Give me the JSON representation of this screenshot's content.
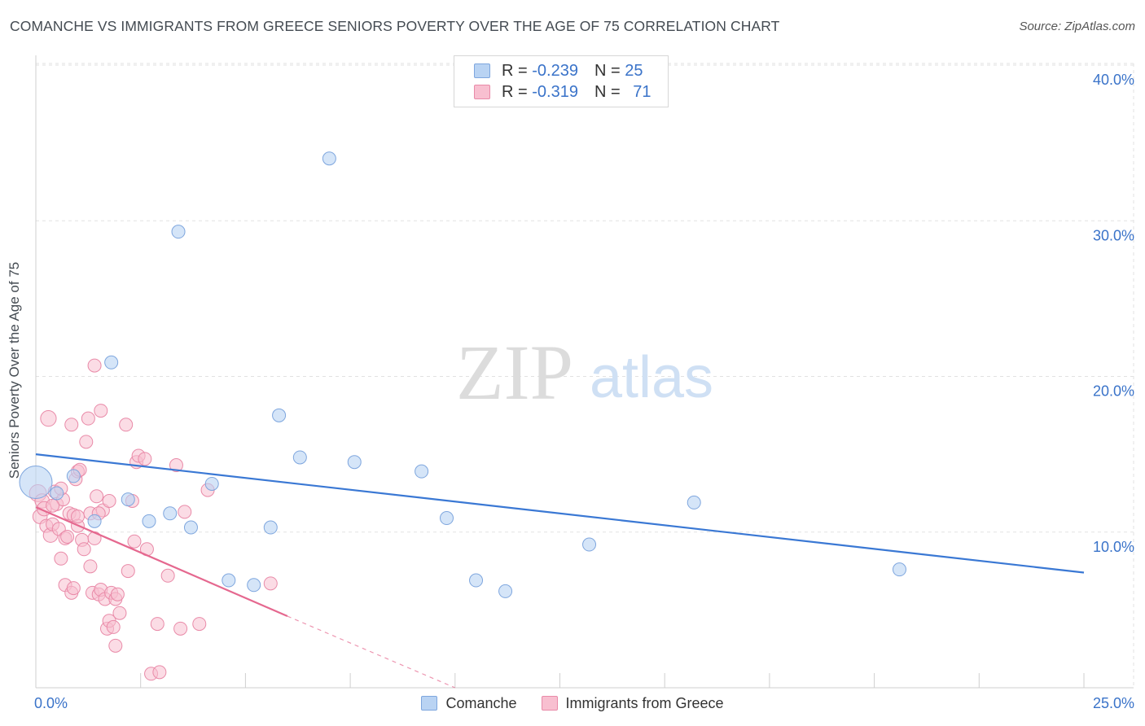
{
  "title": "COMANCHE VS IMMIGRANTS FROM GREECE SENIORS POVERTY OVER THE AGE OF 75 CORRELATION CHART",
  "source": "Source: ZipAtlas.com",
  "watermark": {
    "zip": "ZIP",
    "atlas": "atlas"
  },
  "colors": {
    "blue_fill": "#b9d3f3",
    "blue_stroke": "#7ea6de",
    "blue_line": "#3a78d4",
    "pink_fill": "#f8bfd0",
    "pink_stroke": "#e98aa8",
    "pink_line": "#e5688f",
    "tick_label": "#3a73c9",
    "grid": "#e2e2e2"
  },
  "legend": {
    "series1": {
      "r_label": "R = ",
      "r_value": "-0.239",
      "n_label": "N = ",
      "n_value": "25"
    },
    "series2": {
      "r_label": "R = ",
      "r_value": "-0.319",
      "n_label": "N = ",
      "n_value": "71"
    }
  },
  "bottom_legend": {
    "series1": "Comanche",
    "series2": "Immigrants from Greece"
  },
  "chart_data": {
    "type": "scatter",
    "title": "COMANCHE VS IMMIGRANTS FROM GREECE SENIORS POVERTY OVER THE AGE OF 75 CORRELATION CHART",
    "xlabel": "",
    "ylabel": "Seniors Poverty Over the Age of 75",
    "xlim": [
      0,
      25
    ],
    "ylim": [
      0,
      40
    ],
    "x_tick_labels": [
      "0.0%",
      "25.0%"
    ],
    "y_ticks": [
      10,
      20,
      30,
      40
    ],
    "y_tick_labels": [
      "10.0%",
      "20.0%",
      "30.0%",
      "40.0%"
    ],
    "series": [
      {
        "name": "Comanche",
        "points": [
          [
            0.0,
            13.2,
            24
          ],
          [
            0.5,
            12.5,
            9
          ],
          [
            0.9,
            13.6,
            9
          ],
          [
            1.4,
            10.7,
            9
          ],
          [
            1.8,
            20.9,
            9
          ],
          [
            2.2,
            12.1,
            9
          ],
          [
            2.7,
            10.7,
            9
          ],
          [
            3.2,
            11.2,
            9
          ],
          [
            3.4,
            29.3,
            9
          ],
          [
            3.7,
            10.3,
            9
          ],
          [
            4.2,
            13.1,
            9
          ],
          [
            4.6,
            6.9,
            9
          ],
          [
            5.2,
            6.6,
            9
          ],
          [
            5.6,
            10.3,
            9
          ],
          [
            5.8,
            17.5,
            9
          ],
          [
            6.3,
            14.8,
            9
          ],
          [
            7.0,
            34.0,
            9
          ],
          [
            7.6,
            14.5,
            9
          ],
          [
            9.2,
            13.9,
            9
          ],
          [
            9.8,
            10.9,
            9
          ],
          [
            10.5,
            6.9,
            9
          ],
          [
            11.2,
            6.2,
            9
          ],
          [
            13.2,
            9.2,
            9
          ],
          [
            15.7,
            11.9,
            9
          ],
          [
            20.6,
            7.6,
            9
          ]
        ],
        "trend": {
          "x0": 0,
          "y0": 15.0,
          "x1": 25,
          "y1": 7.4
        }
      },
      {
        "name": "Immigrants from Greece",
        "points": [
          [
            0.05,
            12.5,
            12
          ],
          [
            0.1,
            11.0,
            10
          ],
          [
            0.15,
            12.0,
            10
          ],
          [
            0.2,
            11.5,
            10
          ],
          [
            0.25,
            10.4,
            9
          ],
          [
            0.3,
            17.3,
            11
          ],
          [
            0.35,
            9.8,
            10
          ],
          [
            0.4,
            10.5,
            9
          ],
          [
            0.45,
            12.6,
            9
          ],
          [
            0.5,
            11.8,
            9
          ],
          [
            0.55,
            10.2,
            9
          ],
          [
            0.6,
            8.3,
            9
          ],
          [
            0.65,
            12.1,
            9
          ],
          [
            0.7,
            9.6,
            9
          ],
          [
            0.7,
            6.6,
            9
          ],
          [
            0.75,
            9.7,
            9
          ],
          [
            0.8,
            11.2,
            9
          ],
          [
            0.85,
            6.1,
            9
          ],
          [
            0.85,
            16.9,
            9
          ],
          [
            0.9,
            6.4,
            9
          ],
          [
            0.9,
            11.1,
            9
          ],
          [
            0.95,
            13.4,
            9
          ],
          [
            1.0,
            13.9,
            9
          ],
          [
            1.0,
            10.4,
            9
          ],
          [
            1.05,
            14.0,
            9
          ],
          [
            1.1,
            9.5,
            9
          ],
          [
            1.15,
            8.9,
            9
          ],
          [
            1.2,
            15.8,
            9
          ],
          [
            1.25,
            17.3,
            9
          ],
          [
            1.3,
            7.8,
            9
          ],
          [
            1.3,
            11.2,
            9
          ],
          [
            1.35,
            6.1,
            9
          ],
          [
            1.4,
            9.6,
            9
          ],
          [
            1.4,
            20.7,
            9
          ],
          [
            1.45,
            12.3,
            9
          ],
          [
            1.5,
            6.0,
            9
          ],
          [
            1.55,
            17.8,
            9
          ],
          [
            1.55,
            6.3,
            9
          ],
          [
            1.6,
            11.4,
            9
          ],
          [
            1.65,
            5.7,
            9
          ],
          [
            1.7,
            3.8,
            9
          ],
          [
            1.75,
            4.3,
            9
          ],
          [
            1.75,
            12.0,
            9
          ],
          [
            1.8,
            6.1,
            9
          ],
          [
            1.85,
            3.9,
            9
          ],
          [
            1.9,
            5.7,
            9
          ],
          [
            1.9,
            2.7,
            9
          ],
          [
            1.95,
            6.0,
            9
          ],
          [
            2.0,
            4.8,
            9
          ],
          [
            2.15,
            16.9,
            9
          ],
          [
            2.2,
            7.5,
            9
          ],
          [
            2.35,
            9.4,
            9
          ],
          [
            2.4,
            14.5,
            9
          ],
          [
            2.45,
            14.9,
            9
          ],
          [
            2.6,
            14.7,
            9
          ],
          [
            2.65,
            8.9,
            9
          ],
          [
            2.75,
            0.9,
            9
          ],
          [
            2.9,
            4.1,
            9
          ],
          [
            2.95,
            1.0,
            9
          ],
          [
            3.15,
            7.2,
            9
          ],
          [
            3.35,
            14.3,
            9
          ],
          [
            3.45,
            3.8,
            9
          ],
          [
            3.55,
            11.3,
            9
          ],
          [
            3.9,
            4.1,
            9
          ],
          [
            4.1,
            12.7,
            9
          ],
          [
            5.6,
            6.7,
            9
          ],
          [
            0.6,
            12.8,
            9
          ],
          [
            1.0,
            11.0,
            9
          ],
          [
            1.5,
            11.2,
            9
          ],
          [
            2.3,
            12.0,
            9
          ],
          [
            0.4,
            11.7,
            9
          ]
        ],
        "trend": {
          "x0": 0,
          "y0": 11.6,
          "x1": 6.0,
          "y1": 4.6
        },
        "trend_dashed": {
          "x0": 6.0,
          "y0": 4.6,
          "x1": 10.0,
          "y1": 0
        }
      }
    ]
  }
}
